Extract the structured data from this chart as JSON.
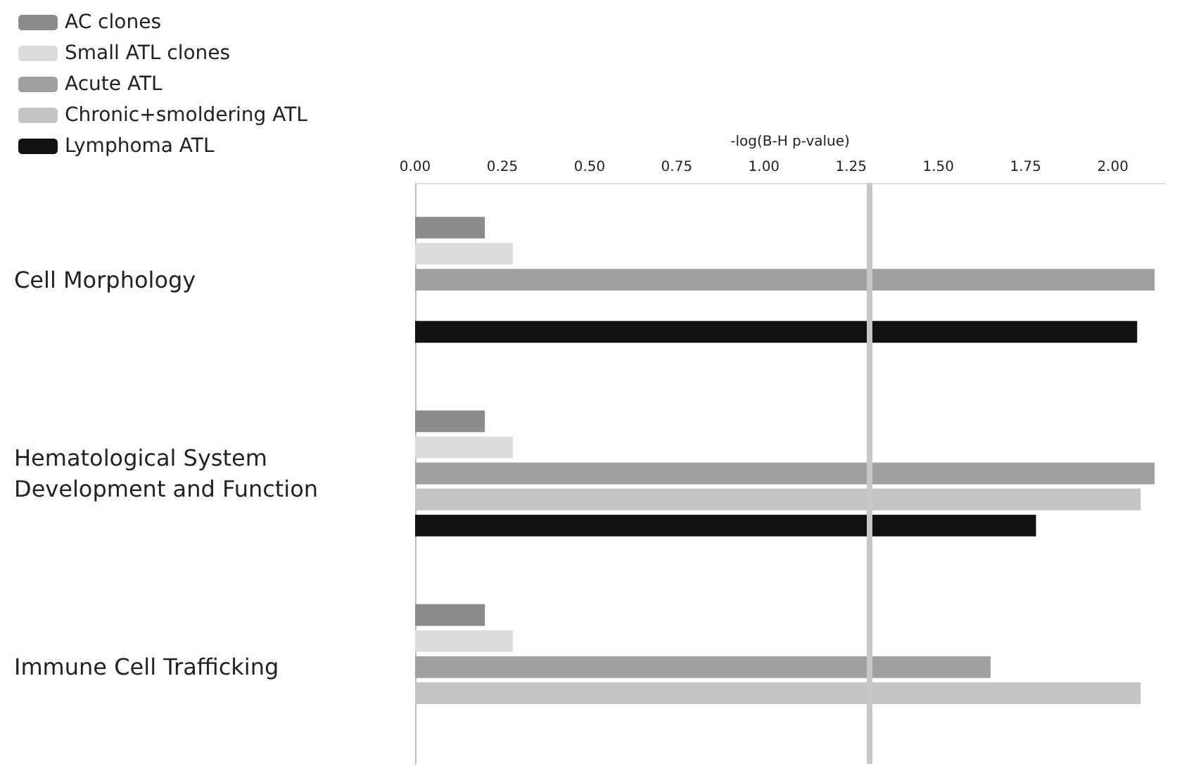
{
  "chart_data": {
    "type": "bar",
    "orientation": "horizontal",
    "xlabel": "-log(B-H p-value)",
    "categories": [
      "Cell Morphology",
      "Hematological System Development and Function",
      "Immune Cell Trafficking"
    ],
    "series": [
      {
        "name": "AC clones",
        "color": "#8c8c8c",
        "values": [
          0.2,
          0.2,
          0.2
        ]
      },
      {
        "name": "Small ATL clones",
        "color": "#dcdcdc",
        "values": [
          0.28,
          0.28,
          0.28
        ]
      },
      {
        "name": "Acute ATL",
        "color": "#a0a0a0",
        "values": [
          2.12,
          2.12,
          1.65
        ]
      },
      {
        "name": "Chronic+smoldering ATL",
        "color": "#c4c4c4",
        "values": [
          null,
          2.08,
          2.08
        ]
      },
      {
        "name": "Lymphoma ATL",
        "color": "#111111",
        "values": [
          2.07,
          1.78,
          null
        ]
      }
    ],
    "xlim": [
      0,
      2.15
    ],
    "xticks": [
      {
        "value": 0,
        "label": "0.00"
      },
      {
        "value": 0.25,
        "label": "0.25"
      },
      {
        "value": 0.5,
        "label": "0.50"
      },
      {
        "value": 0.75,
        "label": "0.75"
      },
      {
        "value": 1,
        "label": "1.00"
      },
      {
        "value": 1.25,
        "label": "1.25"
      },
      {
        "value": 1.5,
        "label": "1.50"
      },
      {
        "value": 1.75,
        "label": "1.75"
      },
      {
        "value": 2,
        "label": "2.00"
      }
    ],
    "ref_lines": [
      {
        "axis": "x",
        "value": 1.3,
        "color": "#c8c8c8"
      }
    ],
    "grid": false,
    "legend": "top left"
  }
}
